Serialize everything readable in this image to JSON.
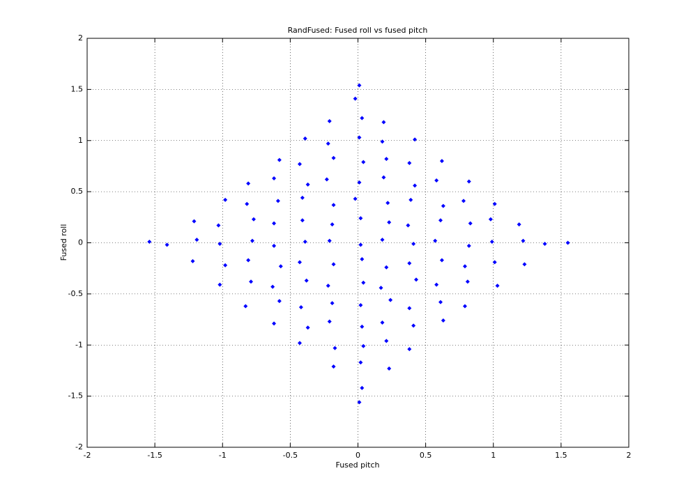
{
  "chart_data": {
    "type": "scatter",
    "title": "RandFused: Fused roll vs fused pitch",
    "x_label": "Fused pitch",
    "y_label": "Fused roll",
    "color": "#0000ff",
    "grid": true,
    "xlim": [
      -2,
      2
    ],
    "ylim": [
      -2,
      2
    ],
    "xticks": [
      -2,
      -1.5,
      -1,
      -0.5,
      0,
      0.5,
      1,
      1.5,
      2
    ],
    "yticks": [
      -2,
      -1.5,
      -1,
      -0.5,
      0,
      0.5,
      1,
      1.5,
      2
    ],
    "x": [
      0.03,
      -0.18,
      0.02,
      0.23,
      -0.43,
      -0.17,
      0.04,
      0.21,
      0.38,
      -0.62,
      -0.37,
      -0.21,
      0.03,
      0.18,
      0.41,
      0.63,
      -0.83,
      -0.58,
      -0.42,
      -0.19,
      0.02,
      0.24,
      0.38,
      0.61,
      0.79,
      -1.02,
      -0.79,
      -0.63,
      -0.38,
      -0.22,
      0.04,
      0.17,
      0.43,
      0.58,
      0.81,
      1.03,
      -1.22,
      -0.98,
      -0.81,
      -0.57,
      -0.43,
      -0.18,
      0.03,
      0.21,
      0.38,
      0.62,
      0.79,
      1.01,
      1.23,
      -1.54,
      -1.41,
      -1.19,
      -1.02,
      -0.78,
      -0.62,
      -0.39,
      -0.21,
      0.02,
      0.18,
      0.41,
      0.57,
      0.82,
      0.99,
      1.22,
      1.38,
      1.55,
      -1.21,
      -1.03,
      -0.77,
      -0.62,
      -0.41,
      -0.19,
      0.02,
      0.23,
      0.37,
      0.61,
      0.83,
      0.98,
      1.19,
      -0.98,
      -0.82,
      -0.59,
      -0.41,
      -0.18,
      -0.02,
      0.22,
      0.39,
      0.63,
      0.78,
      1.01,
      -0.81,
      -0.62,
      -0.37,
      -0.23,
      0.01,
      0.19,
      0.42,
      0.58,
      0.82,
      -0.58,
      -0.43,
      -0.18,
      0.04,
      0.21,
      0.38,
      0.62,
      -0.39,
      -0.22,
      0.01,
      0.18,
      0.42,
      -0.21,
      0.03,
      0.19,
      -0.02,
      0.01,
      0.01
    ],
    "values": [
      -1.42,
      -1.21,
      -1.17,
      -1.23,
      -0.98,
      -1.03,
      -1.01,
      -0.96,
      -1.04,
      -0.79,
      -0.83,
      -0.77,
      -0.82,
      -0.78,
      -0.81,
      -0.76,
      -0.62,
      -0.57,
      -0.63,
      -0.59,
      -0.61,
      -0.56,
      -0.64,
      -0.58,
      -0.62,
      -0.41,
      -0.38,
      -0.43,
      -0.37,
      -0.42,
      -0.39,
      -0.44,
      -0.36,
      -0.41,
      -0.38,
      -0.42,
      -0.18,
      -0.22,
      -0.17,
      -0.23,
      -0.19,
      -0.21,
      -0.16,
      -0.24,
      -0.2,
      -0.17,
      -0.23,
      -0.19,
      -0.21,
      0.01,
      -0.02,
      0.03,
      -0.01,
      0.02,
      -0.03,
      0.01,
      0.02,
      -0.02,
      0.03,
      -0.01,
      0.02,
      -0.03,
      0.01,
      0.02,
      -0.01,
      0,
      0.21,
      0.17,
      0.23,
      0.19,
      0.22,
      0.18,
      0.24,
      0.2,
      0.17,
      0.22,
      0.19,
      0.23,
      0.18,
      0.42,
      0.38,
      0.41,
      0.44,
      0.37,
      0.43,
      0.39,
      0.42,
      0.36,
      0.41,
      0.38,
      0.58,
      0.63,
      0.57,
      0.62,
      0.59,
      0.64,
      0.56,
      0.61,
      0.6,
      0.81,
      0.77,
      0.83,
      0.79,
      0.82,
      0.78,
      0.8,
      1.02,
      0.97,
      1.03,
      0.99,
      1.01,
      1.19,
      1.22,
      1.18,
      1.41,
      1.54,
      -1.56
    ]
  }
}
